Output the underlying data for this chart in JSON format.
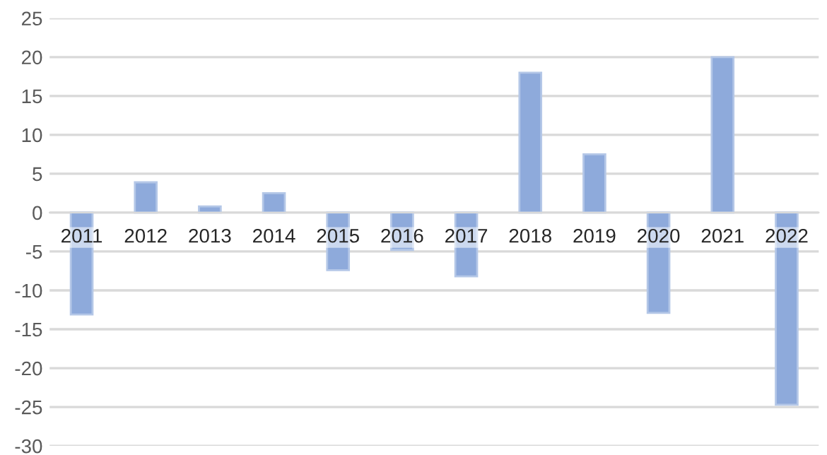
{
  "chart_data": {
    "type": "bar",
    "categories": [
      "2011",
      "2012",
      "2013",
      "2014",
      "2015",
      "2016",
      "2017",
      "2018",
      "2019",
      "2020",
      "2021",
      "2022"
    ],
    "values": [
      -13.1,
      3.9,
      0.8,
      2.5,
      -7.4,
      -4.8,
      -8.2,
      18.0,
      7.5,
      -12.9,
      20,
      -24.7
    ],
    "color": "#8eaadb",
    "ylim": [
      -30,
      25
    ],
    "yticks": [
      -30,
      -25,
      -20,
      -15,
      -10,
      -5,
      0,
      5,
      10,
      15,
      20,
      25
    ],
    "grid": "y",
    "legend": false
  }
}
